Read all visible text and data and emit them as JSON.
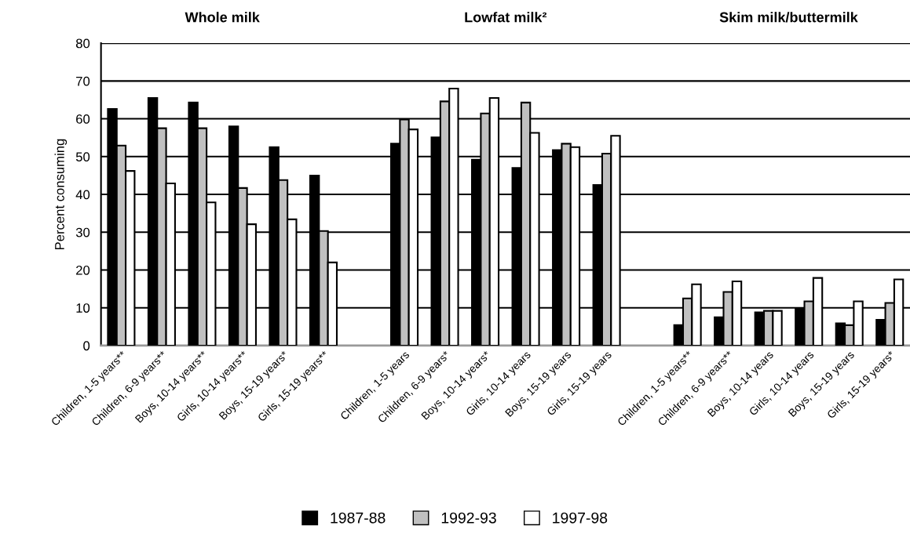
{
  "chart_data": {
    "type": "bar",
    "ylabel": "Percent consuming",
    "annotations": [
      "Whole milk",
      "Lowfat milk²",
      "Skim milk/buttermilk"
    ],
    "categories": [
      "Children, 1-5 years**",
      "Children, 6-9 years**",
      "Boys, 10-14 years**",
      "Girls, 10-14 years**",
      "Boys, 15-19 years*",
      "Girls, 15-19 years**",
      null,
      "Children, 1-5 years",
      "Children, 6-9 years*",
      "Boys, 10-14 years*",
      "Girls, 10-14 years",
      "Boys, 15-19 years",
      "Girls, 15-19 years",
      null,
      "Children, 1-5 years**",
      "Children, 6-9 years**",
      "Boys, 10-14 years",
      "Girls, 10-14 years",
      "Boys, 15-19 years",
      "Girls, 15-19 years*"
    ],
    "series": [
      {
        "name": "1987-88",
        "color": "#000000",
        "values": [
          62.6,
          65.5,
          64.3,
          58,
          52.5,
          45,
          null,
          53.4,
          55.1,
          49.2,
          47,
          51.7,
          42.5,
          null,
          5.4,
          7.5,
          8.8,
          9.8,
          5.9,
          6.8
        ]
      },
      {
        "name": "1992-93",
        "color": "#c0c0c0",
        "values": [
          52.9,
          57.5,
          57.5,
          41.7,
          43.8,
          30.3,
          null,
          59.8,
          64.6,
          61.4,
          64.3,
          53.4,
          50.8,
          null,
          12.5,
          14.2,
          9.2,
          11.7,
          5.4,
          11.3
        ]
      },
      {
        "name": "1997-98",
        "color": "#ffffff",
        "values": [
          46.2,
          42.9,
          37.9,
          32.1,
          33.4,
          22,
          null,
          57.2,
          68,
          65.5,
          56.3,
          52.5,
          55.5,
          null,
          16.2,
          17,
          9.2,
          17.9,
          11.7,
          17.5
        ]
      }
    ],
    "ylim": [
      0,
      80
    ],
    "yticks": [
      0,
      10,
      20,
      30,
      40,
      50,
      60,
      70,
      80
    ],
    "grid": "y",
    "legend": "bottom"
  }
}
